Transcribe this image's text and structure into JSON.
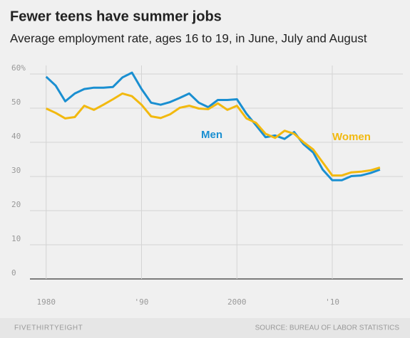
{
  "chart_data": {
    "type": "line",
    "title": "Fewer teens have summer jobs",
    "subtitle": "Average employment rate, ages 16 to 19, in June, July and August",
    "x": [
      1980,
      1981,
      1982,
      1983,
      1984,
      1985,
      1986,
      1987,
      1988,
      1989,
      1990,
      1991,
      1992,
      1993,
      1994,
      1995,
      1996,
      1997,
      1998,
      1999,
      2000,
      2001,
      2002,
      2003,
      2004,
      2005,
      2006,
      2007,
      2008,
      2009,
      2010,
      2011,
      2012,
      2013,
      2014,
      2015
    ],
    "series": [
      {
        "name": "Men",
        "color": "#1a8fd1",
        "values": [
          59.2,
          56.6,
          52,
          54.3,
          55.6,
          56,
          56,
          56.2,
          59,
          60.4,
          55.6,
          51.6,
          51,
          51.8,
          53,
          54.3,
          51.6,
          50.3,
          52.4,
          52.4,
          52.6,
          48.4,
          45,
          41.5,
          42,
          41,
          43,
          39.4,
          37,
          32,
          28.9,
          28.9,
          30.1,
          30.3,
          31,
          32
        ]
      },
      {
        "name": "Women",
        "color": "#f2b90f",
        "values": [
          49.9,
          48.6,
          47,
          47.4,
          50.7,
          49.5,
          51,
          52.6,
          54.3,
          53.5,
          51,
          47.6,
          47.1,
          48.2,
          50.1,
          50.7,
          49.9,
          49.7,
          51.4,
          49.5,
          50.7,
          47,
          45.7,
          42.5,
          41.3,
          43.4,
          42.5,
          40,
          37.9,
          34.1,
          30.3,
          30.3,
          31.2,
          31.4,
          31.8,
          32.6
        ]
      }
    ],
    "xlim": [
      1978.3,
      2017.4
    ],
    "ylim": [
      0,
      62.5
    ],
    "xticks": [
      1980,
      {
        "value": 1990,
        "label": "'90"
      },
      2000,
      {
        "value": 2010,
        "label": "'10"
      }
    ],
    "yticks": [
      0,
      10,
      20,
      30,
      40,
      50,
      {
        "value": 60,
        "label": "60%"
      }
    ],
    "grid": true,
    "source": "SOURCE: BUREAU OF LABOR STATISTICS",
    "brand": "FIVETHIRTYEIGHT"
  }
}
